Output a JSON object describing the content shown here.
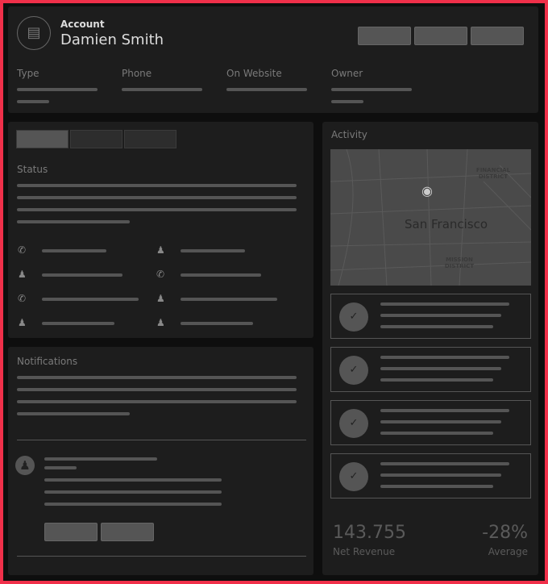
{
  "header": {
    "label": "Account",
    "name": "Damien Smith",
    "icon": "clipboard-icon",
    "fields": [
      {
        "label": "Type"
      },
      {
        "label": "Phone"
      },
      {
        "label": "On Website"
      },
      {
        "label": "Owner"
      }
    ]
  },
  "status": {
    "title": "Status",
    "tabs": 3,
    "contacts": [
      {
        "icon": "phone-incoming-icon"
      },
      {
        "icon": "user-icon"
      },
      {
        "icon": "user-icon"
      },
      {
        "icon": "phone-incoming-icon"
      },
      {
        "icon": "phone-incoming-icon"
      },
      {
        "icon": "user-icon"
      },
      {
        "icon": "user-icon"
      },
      {
        "icon": "user-icon"
      }
    ]
  },
  "notifications": {
    "title": "Notifications"
  },
  "activity": {
    "title": "Activity",
    "map": {
      "city": "San Francisco",
      "district1": "FINANCIAL DISTRICT",
      "district2": "MISSION DISTRICT"
    },
    "metric1": {
      "value": "143.755",
      "label": "Net Revenue"
    },
    "metric2": {
      "value": "-28%",
      "label": "Average"
    }
  },
  "colors": {
    "frame": "#f0304a",
    "card": "#1d1d1d",
    "placeholder": "#555555"
  }
}
